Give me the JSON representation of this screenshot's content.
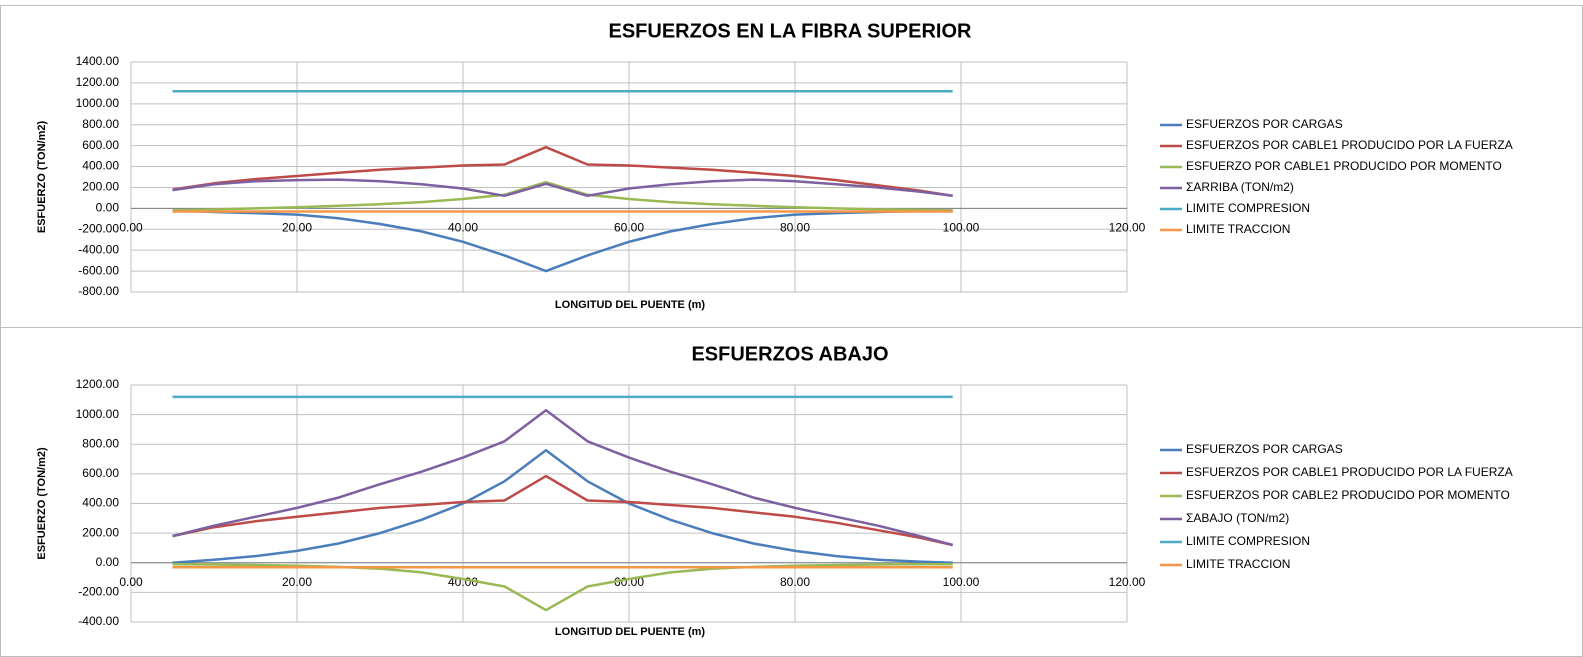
{
  "chart_data": [
    {
      "type": "line",
      "title": "ESFUERZOS EN LA FIBRA SUPERIOR",
      "xlabel": "LONGITUD DEL PUENTE (m)",
      "ylabel": "ESFUERZO (TON/m2)",
      "x": [
        5,
        10,
        15,
        20,
        25,
        30,
        35,
        40,
        45,
        50,
        55,
        60,
        65,
        70,
        75,
        80,
        85,
        90,
        95,
        99
      ],
      "series": [
        {
          "name": "ESFUERZOS POR CARGAS",
          "color": "#4a7ebb",
          "values": [
            -20,
            -35,
            -45,
            -60,
            -95,
            -150,
            -220,
            -320,
            -450,
            -600,
            -450,
            -320,
            -220,
            -150,
            -95,
            -60,
            -45,
            -35,
            -25,
            -20
          ]
        },
        {
          "name": "ESFUERZOS POR CABLE1 PRODUCIDO POR LA FUERZA",
          "color": "#be4b48",
          "values": [
            180,
            240,
            280,
            310,
            340,
            370,
            390,
            410,
            420,
            585,
            420,
            410,
            390,
            370,
            340,
            310,
            270,
            220,
            170,
            120
          ]
        },
        {
          "name": "ESFUERZO POR CABLE1 PRODUCIDO POR MOMENTO",
          "color": "#98b954",
          "values": [
            -20,
            -10,
            0,
            10,
            25,
            40,
            60,
            90,
            130,
            250,
            130,
            90,
            60,
            40,
            25,
            10,
            0,
            -10,
            -15,
            -20
          ]
        },
        {
          "name": "ΣARRIBA (TON/m2)",
          "color": "#7d60a0",
          "values": [
            175,
            230,
            260,
            270,
            275,
            260,
            230,
            190,
            120,
            235,
            120,
            190,
            230,
            260,
            275,
            260,
            230,
            200,
            160,
            120
          ]
        },
        {
          "name": "LIMITE COMPRESION",
          "color": "#4bacc6",
          "values": [
            1120,
            1120,
            1120,
            1120,
            1120,
            1120,
            1120,
            1120,
            1120,
            1120,
            1120,
            1120,
            1120,
            1120,
            1120,
            1120,
            1120,
            1120,
            1120,
            1120
          ]
        },
        {
          "name": "LIMITE TRACCION",
          "color": "#f79646",
          "values": [
            -30,
            -30,
            -30,
            -30,
            -30,
            -30,
            -30,
            -30,
            -30,
            -30,
            -30,
            -30,
            -30,
            -30,
            -30,
            -30,
            -30,
            -30,
            -30,
            -30
          ]
        }
      ],
      "xlim": [
        0,
        120
      ],
      "xticks": [
        {
          "value": 0,
          "label": "0.00"
        },
        {
          "value": 20,
          "label": "20.00"
        },
        {
          "value": 40,
          "label": "40.00"
        },
        {
          "value": 60,
          "label": "60.00"
        },
        {
          "value": 80,
          "label": "80.00"
        },
        {
          "value": 100,
          "label": "100.00"
        },
        {
          "value": 120,
          "label": "120.00"
        }
      ],
      "ylim": [
        -800,
        1400
      ],
      "yticks": [
        {
          "value": -800,
          "label": "-800.00"
        },
        {
          "value": -600,
          "label": "-600.00"
        },
        {
          "value": -400,
          "label": "-400.00"
        },
        {
          "value": -200,
          "label": "-200.00"
        },
        {
          "value": 0,
          "label": "0.00"
        },
        {
          "value": 200,
          "label": "200.00"
        },
        {
          "value": 400,
          "label": "400.00"
        },
        {
          "value": 600,
          "label": "600.00"
        },
        {
          "value": 800,
          "label": "800.00"
        },
        {
          "value": 1000,
          "label": "1000.00"
        },
        {
          "value": 1200,
          "label": "1200.00"
        },
        {
          "value": 1400,
          "label": "1400.00"
        }
      ],
      "grid": true,
      "legend": "right"
    },
    {
      "type": "line",
      "title": "ESFUERZOS ABAJO",
      "xlabel": "LONGITUD DEL PUENTE (m)",
      "ylabel": "ESFUERZO (TON/m2)",
      "x": [
        5,
        10,
        15,
        20,
        25,
        30,
        35,
        40,
        45,
        50,
        55,
        60,
        65,
        70,
        75,
        80,
        85,
        90,
        95,
        99
      ],
      "series": [
        {
          "name": "ESFUERZOS POR CARGAS",
          "color": "#4a7ebb",
          "values": [
            0,
            20,
            45,
            80,
            130,
            200,
            290,
            400,
            550,
            760,
            550,
            400,
            290,
            200,
            130,
            80,
            45,
            20,
            8,
            0
          ]
        },
        {
          "name": "ESFUERZOS POR CABLE1 PRODUCIDO POR LA FUERZA",
          "color": "#be4b48",
          "values": [
            180,
            240,
            280,
            310,
            340,
            370,
            390,
            410,
            420,
            585,
            420,
            410,
            390,
            370,
            340,
            310,
            270,
            220,
            170,
            120
          ]
        },
        {
          "name": "ESFUERZOS POR CABLE2 PRODUCIDO POR MOMENTO",
          "color": "#98b954",
          "values": [
            -10,
            -12,
            -15,
            -20,
            -28,
            -40,
            -65,
            -110,
            -160,
            -320,
            -160,
            -110,
            -65,
            -40,
            -28,
            -20,
            -15,
            -12,
            -10,
            -10
          ]
        },
        {
          "name": "ΣABAJO (TON/m2)",
          "color": "#7d60a0",
          "values": [
            180,
            250,
            310,
            370,
            440,
            530,
            615,
            710,
            820,
            1030,
            820,
            710,
            615,
            530,
            440,
            370,
            310,
            250,
            180,
            120
          ]
        },
        {
          "name": "LIMITE COMPRESION",
          "color": "#4bacc6",
          "values": [
            1120,
            1120,
            1120,
            1120,
            1120,
            1120,
            1120,
            1120,
            1120,
            1120,
            1120,
            1120,
            1120,
            1120,
            1120,
            1120,
            1120,
            1120,
            1120,
            1120
          ]
        },
        {
          "name": "LIMITE TRACCION",
          "color": "#f79646",
          "values": [
            -30,
            -30,
            -30,
            -30,
            -30,
            -30,
            -30,
            -30,
            -30,
            -30,
            -30,
            -30,
            -30,
            -30,
            -30,
            -30,
            -30,
            -30,
            -30,
            -30
          ]
        }
      ],
      "xlim": [
        0,
        120
      ],
      "xticks": [
        {
          "value": 0,
          "label": "0.00"
        },
        {
          "value": 20,
          "label": "20.00"
        },
        {
          "value": 40,
          "label": "40.00"
        },
        {
          "value": 60,
          "label": "60.00"
        },
        {
          "value": 80,
          "label": "80.00"
        },
        {
          "value": 100,
          "label": "100.00"
        },
        {
          "value": 120,
          "label": "120.00"
        }
      ],
      "ylim": [
        -400,
        1200
      ],
      "yticks": [
        {
          "value": -400,
          "label": "-400.00"
        },
        {
          "value": -200,
          "label": "-200.00"
        },
        {
          "value": 0,
          "label": "0.00"
        },
        {
          "value": 200,
          "label": "200.00"
        },
        {
          "value": 400,
          "label": "400.00"
        },
        {
          "value": 600,
          "label": "600.00"
        },
        {
          "value": 800,
          "label": "800.00"
        },
        {
          "value": 1000,
          "label": "1000.00"
        },
        {
          "value": 1200,
          "label": "1200.00"
        }
      ],
      "grid": true,
      "legend": "right"
    }
  ]
}
